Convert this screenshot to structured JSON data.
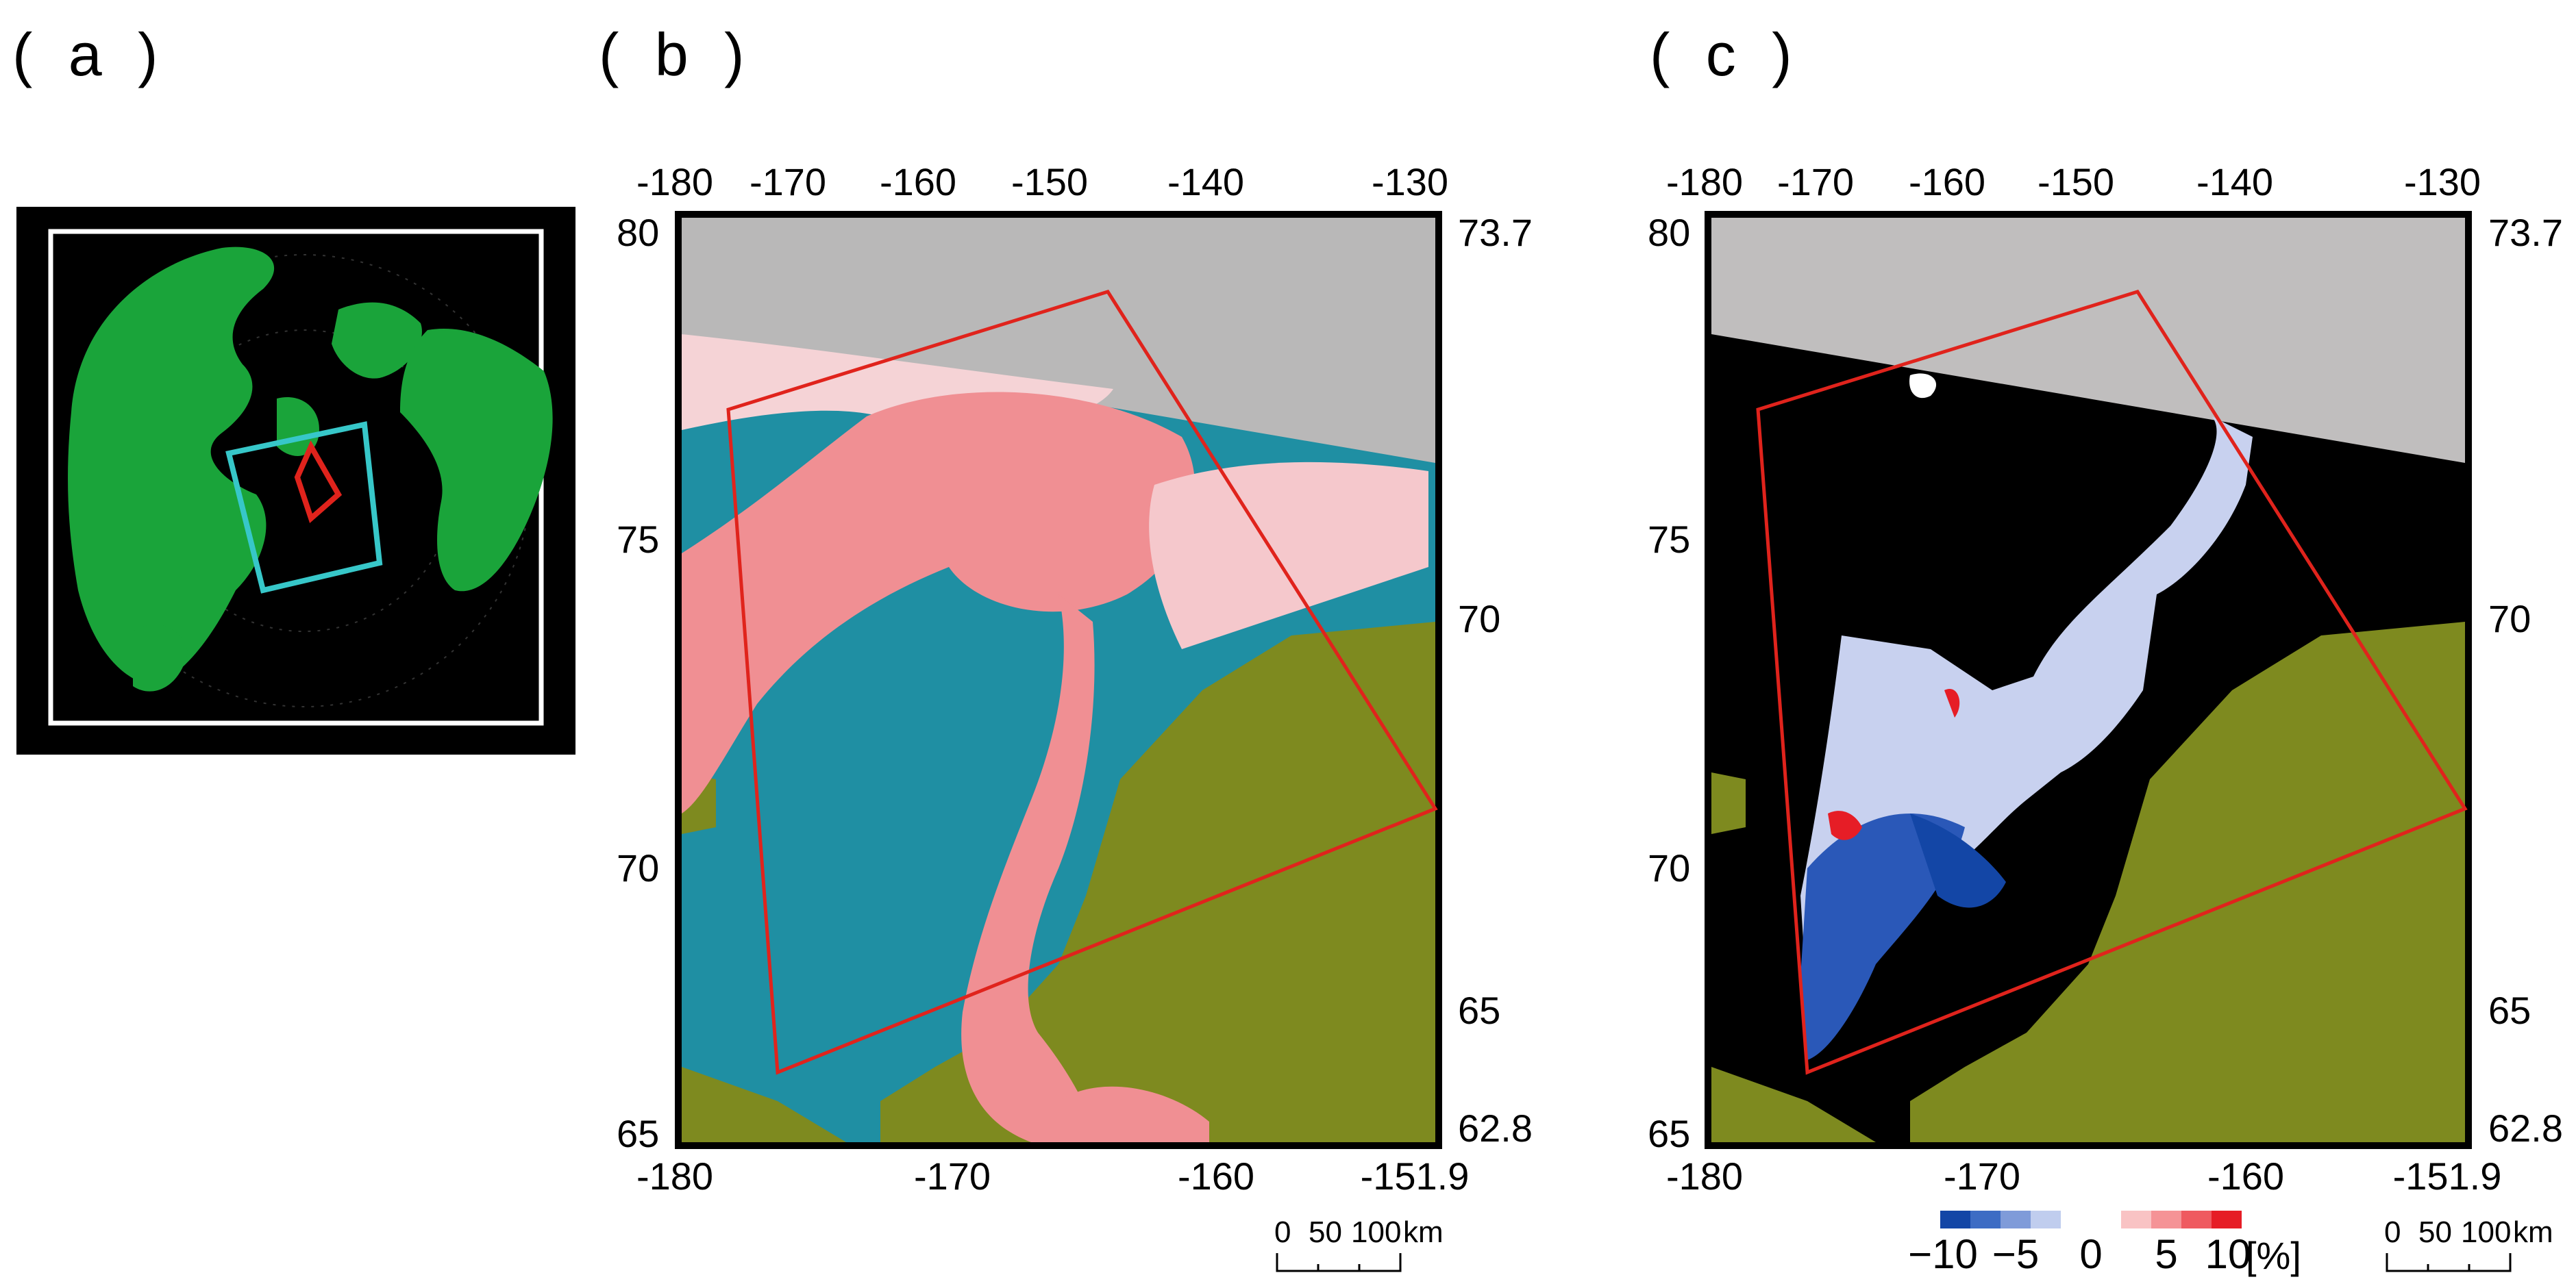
{
  "panels": {
    "a": {
      "label": "( a )",
      "colors": {
        "background": "#000000",
        "land": "#1aa43a",
        "frame": "#ffffff",
        "swath": "#37c7c9",
        "region": "#e0231c"
      }
    },
    "b": {
      "label": "( b )",
      "top_ticks": [
        "-180",
        "-170",
        "-160",
        "-150",
        "-140",
        "-130"
      ],
      "bottom_ticks": [
        "-180",
        "-170",
        "-160",
        "-151.9"
      ],
      "left_ticks": [
        "80",
        "75",
        "70",
        "65"
      ],
      "right_ticks": [
        "73.7",
        "70",
        "65",
        "62.8"
      ],
      "scalebar": {
        "ticks": [
          "0",
          "50",
          "100"
        ],
        "unit": "km"
      },
      "colors": {
        "land": "#7e8a1f",
        "ice": "#f08f93",
        "water": "#1f8fa3",
        "nodata": "#b9b8b8",
        "outline": "#e0231c"
      }
    },
    "c": {
      "label": "( c )",
      "top_ticks": [
        "-180",
        "-170",
        "-160",
        "-150",
        "-140",
        "-130"
      ],
      "bottom_ticks": [
        "-180",
        "-170",
        "-160",
        "-151.9"
      ],
      "left_ticks": [
        "80",
        "75",
        "70",
        "65"
      ],
      "right_ticks": [
        "73.7",
        "70",
        "65",
        "62.8"
      ],
      "scalebar": {
        "ticks": [
          "0",
          "50",
          "100"
        ],
        "unit": "km"
      },
      "colorbar": {
        "ticks": [
          "−10",
          "−5",
          "0",
          "5",
          "10"
        ],
        "unit": "[%]",
        "range": [
          -10,
          10
        ],
        "colors": [
          "#1346a6",
          "#3d6cc4",
          "#7f9bd9",
          "#c0cdee",
          "#ffffff",
          "#ffffff",
          "#f9c3c4",
          "#f59396",
          "#ef5a60",
          "#e61d26"
        ]
      },
      "colors": {
        "land": "#7e8a1f",
        "sea": "#000000",
        "nodata": "#c0bebe",
        "outline": "#e0231c"
      }
    }
  }
}
